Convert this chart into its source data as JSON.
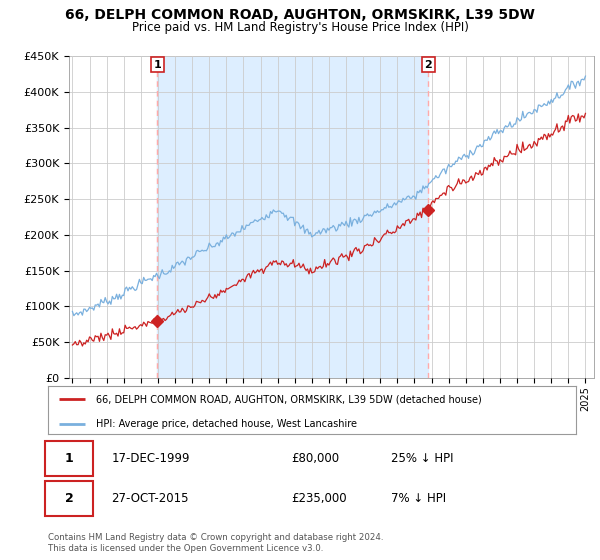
{
  "title": "66, DELPH COMMON ROAD, AUGHTON, ORMSKIRK, L39 5DW",
  "subtitle": "Price paid vs. HM Land Registry's House Price Index (HPI)",
  "ylabel_ticks": [
    0,
    50000,
    100000,
    150000,
    200000,
    250000,
    300000,
    350000,
    400000,
    450000
  ],
  "ylabel_labels": [
    "£0",
    "£50K",
    "£100K",
    "£150K",
    "£200K",
    "£250K",
    "£300K",
    "£350K",
    "£400K",
    "£450K"
  ],
  "ylim": [
    0,
    450000
  ],
  "xlim_start": 1994.8,
  "xlim_end": 2025.5,
  "hpi_color": "#7ab0de",
  "price_color": "#cc2222",
  "sale1_year": 1999.96,
  "sale1_price": 80000,
  "sale2_year": 2015.82,
  "sale2_price": 235000,
  "legend_line1": "66, DELPH COMMON ROAD, AUGHTON, ORMSKIRK, L39 5DW (detached house)",
  "legend_line2": "HPI: Average price, detached house, West Lancashire",
  "table_row1_date": "17-DEC-1999",
  "table_row1_price": "£80,000",
  "table_row1_hpi": "25% ↓ HPI",
  "table_row2_date": "27-OCT-2015",
  "table_row2_price": "£235,000",
  "table_row2_hpi": "7% ↓ HPI",
  "footnote": "Contains HM Land Registry data © Crown copyright and database right 2024.\nThis data is licensed under the Open Government Licence v3.0.",
  "bg_color": "#ffffff",
  "plot_bg_color": "#ffffff",
  "grid_color": "#cccccc",
  "vline_color": "#ffaaaa",
  "shade_color": "#ddeeff"
}
